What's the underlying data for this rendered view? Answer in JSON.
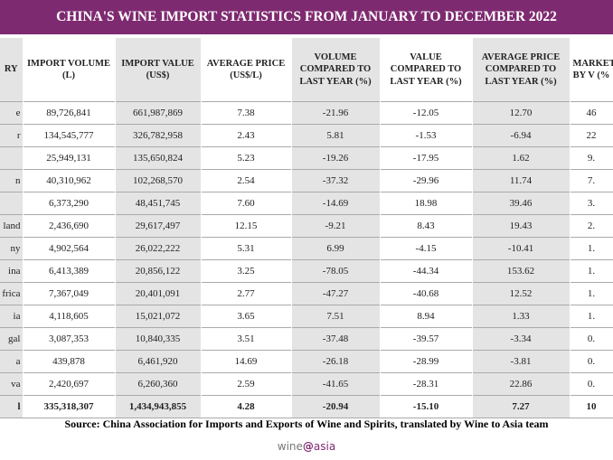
{
  "header": {
    "title": "CHINA'S WINE IMPORT STATISTICS FROM JANUARY TO DECEMBER 2022"
  },
  "table": {
    "columns": [
      "RY",
      "IMPORT VOLUME (L)",
      "IMPORT VALUE (US$)",
      "AVERAGE PRICE (US$/L)",
      "VOLUME COMPARED TO LAST YEAR (%)",
      "VALUE COMPARED TO LAST YEAR (%)",
      "AVERAGE PRICE COMPARED TO LAST YEAR (%)",
      "MARKET BY V (%"
    ],
    "rows": [
      [
        "e",
        "89,726,841",
        "661,987,869",
        "7.38",
        "-21.96",
        "-12.05",
        "12.70",
        "46"
      ],
      [
        "r",
        "134,545,777",
        "326,782,958",
        "2.43",
        "5.81",
        "-1.53",
        "-6.94",
        "22"
      ],
      [
        null,
        "25,949,131",
        "135,650,824",
        "5.23",
        "-19.26",
        "-17.95",
        "1.62",
        "9."
      ],
      [
        "n",
        "40,310,962",
        "102,268,570",
        "2.54",
        "-37.32",
        "-29.96",
        "11.74",
        "7."
      ],
      [
        null,
        "6,373,290",
        "48,451,745",
        "7.60",
        "-14.69",
        "18.98",
        "39.46",
        "3."
      ],
      [
        "land",
        "2,436,690",
        "29,617,497",
        "12.15",
        "-9.21",
        "8.43",
        "19.43",
        "2."
      ],
      [
        "ny",
        "4,902,564",
        "26,022,222",
        "5.31",
        "6.99",
        "-4.15",
        "-10.41",
        "1."
      ],
      [
        "ina",
        "6,413,389",
        "20,856,122",
        "3.25",
        "-78.05",
        "-44.34",
        "153.62",
        "1."
      ],
      [
        "frica",
        "7,367,049",
        "20,401,091",
        "2.77",
        "-47.27",
        "-40.68",
        "12.52",
        "1."
      ],
      [
        "ia",
        "4,118,605",
        "15,021,072",
        "3.65",
        "7.51",
        "8.94",
        "1.33",
        "1."
      ],
      [
        "gal",
        "3,087,353",
        "10,840,335",
        "3.51",
        "-37.48",
        "-39.57",
        "-3.34",
        "0."
      ],
      [
        "a",
        "439,878",
        "6,461,920",
        "14.69",
        "-26.18",
        "-28.99",
        "-3.81",
        "0."
      ],
      [
        "va",
        "2,420,697",
        "6,260,360",
        "2.59",
        "-41.65",
        "-28.31",
        "22.86",
        "0."
      ],
      [
        "l",
        "335,318,307",
        "1,434,943,855",
        "4.28",
        "-20.94",
        "-15.10",
        "7.27",
        "10"
      ]
    ]
  },
  "footer": {
    "source": "Source: China Association for Imports and Exports of Wine and Spirits, translated by Wine to Asia team",
    "logo": [
      "wine",
      "@",
      "asia"
    ]
  }
}
